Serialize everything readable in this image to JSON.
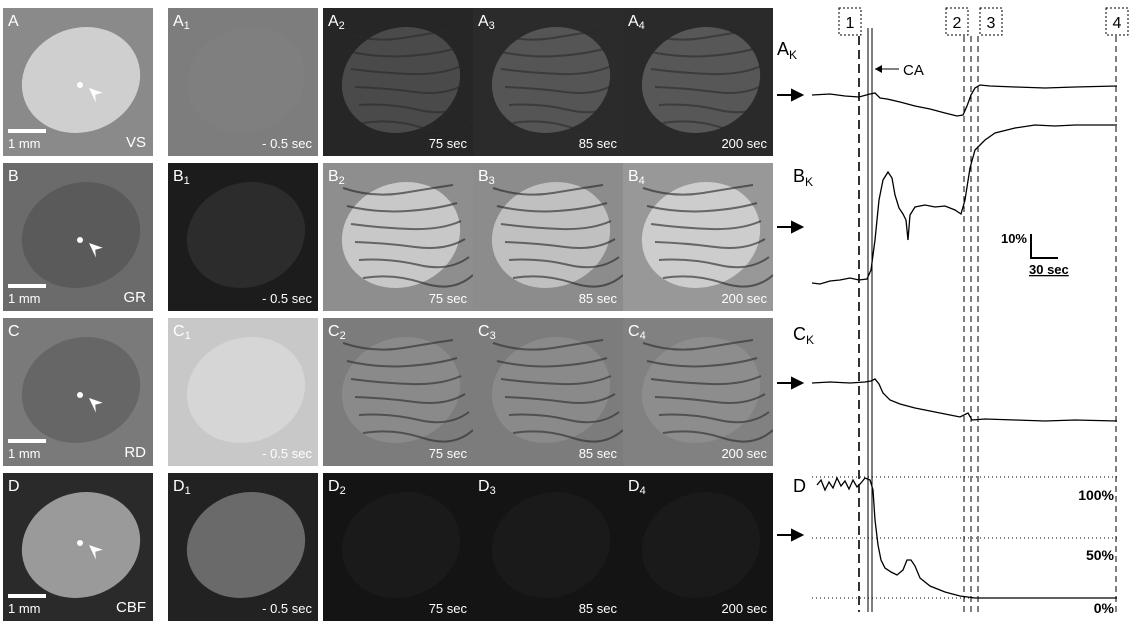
{
  "rows": [
    {
      "label": "A",
      "sub_prefix": "A",
      "modality": "VS",
      "scale": "1 mm"
    },
    {
      "label": "B",
      "sub_prefix": "B",
      "modality": "GR",
      "scale": "1 mm"
    },
    {
      "label": "C",
      "sub_prefix": "C",
      "modality": "RD",
      "scale": "1 mm"
    },
    {
      "label": "D",
      "sub_prefix": "D",
      "modality": "CBF",
      "scale": "1 mm"
    }
  ],
  "columns": [
    {
      "sub": "1",
      "time": "- 0.5 sec"
    },
    {
      "sub": "2",
      "time": "75 sec"
    },
    {
      "sub": "3",
      "time": "85 sec"
    },
    {
      "sub": "4",
      "time": "200 sec"
    }
  ],
  "traces": {
    "labels": [
      {
        "main": "A",
        "sub": "K"
      },
      {
        "main": "B",
        "sub": "K"
      },
      {
        "main": "C",
        "sub": "K"
      },
      {
        "main": "D",
        "sub": ""
      }
    ],
    "time_markers": [
      "1",
      "2",
      "3",
      "4"
    ],
    "ca_label": "CA",
    "scalebar_y": "10%",
    "scalebar_x": "30 sec",
    "cbf_levels": [
      "100%",
      "50%",
      "0%"
    ]
  }
}
